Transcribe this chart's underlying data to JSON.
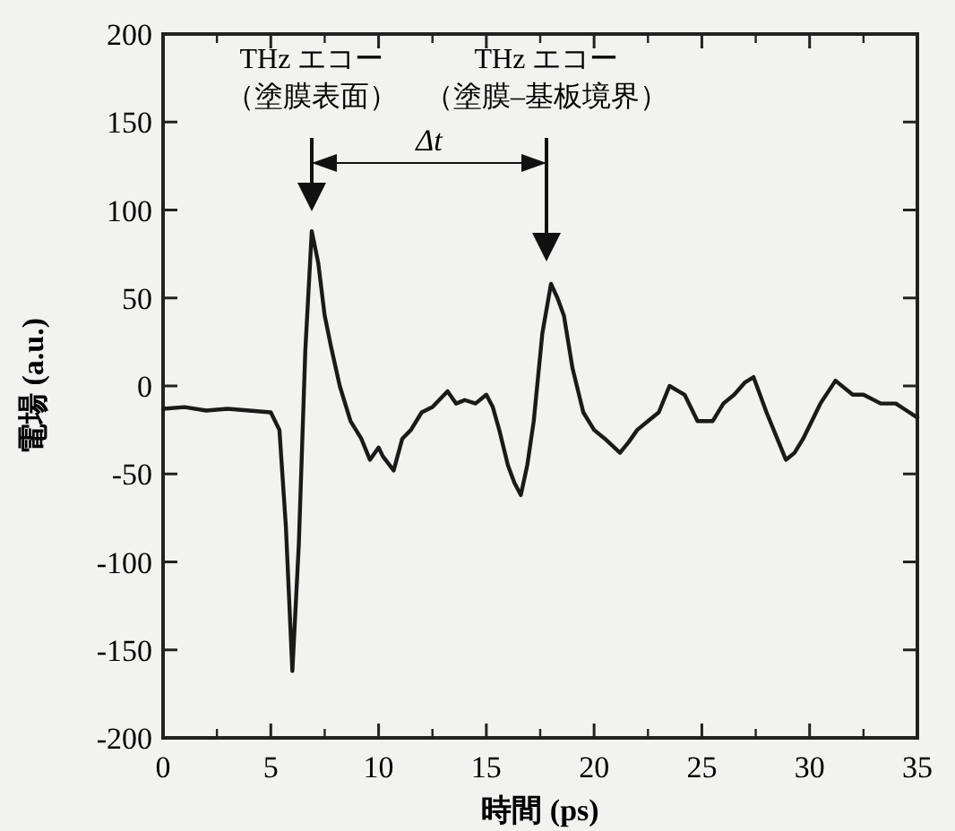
{
  "chart_data": {
    "type": "line",
    "xlabel": "時間 (ps)",
    "ylabel": "電場 (a.u.)",
    "xlim": [
      0,
      35
    ],
    "ylim": [
      -200,
      200
    ],
    "xticks": [
      0,
      5,
      10,
      15,
      20,
      25,
      30,
      35
    ],
    "yticks": [
      -200,
      -150,
      -100,
      -50,
      0,
      50,
      100,
      150,
      200
    ],
    "grid": false,
    "marker": "none",
    "line_style": "solid",
    "series": [
      {
        "color": "#1a1a1a",
        "x": [
          0,
          1,
          2,
          3,
          4,
          5,
          5.4,
          5.7,
          6.0,
          6.3,
          6.6,
          6.9,
          7.2,
          7.5,
          7.8,
          8.2,
          8.7,
          9.2,
          9.6,
          10,
          10.2,
          10.7,
          11.1,
          11.5,
          12,
          12.5,
          13.2,
          13.6,
          14,
          14.5,
          15,
          15.3,
          15.6,
          16.0,
          16.3,
          16.6,
          16.9,
          17.2,
          17.6,
          18.0,
          18.3,
          18.6,
          19,
          19.5,
          20,
          20.5,
          21.2,
          21.6,
          22,
          22.5,
          23,
          23.5,
          24.2,
          24.8,
          25.5,
          26,
          26.5,
          27,
          27.4,
          28,
          28.5,
          28.9,
          29.3,
          29.7,
          30.5,
          31.2,
          32,
          32.5,
          33.3,
          34,
          34.5,
          35
        ],
        "values": [
          -13,
          -12,
          -14,
          -13,
          -14,
          -15,
          -25,
          -80,
          -162,
          -90,
          20,
          88,
          70,
          40,
          22,
          0,
          -20,
          -30,
          -42,
          -35,
          -40,
          -48,
          -30,
          -25,
          -15,
          -12,
          -3,
          -10,
          -8,
          -10,
          -5,
          -12,
          -25,
          -45,
          -55,
          -62,
          -45,
          -20,
          30,
          58,
          50,
          40,
          10,
          -15,
          -25,
          -30,
          -38,
          -32,
          -25,
          -20,
          -15,
          0,
          -5,
          -20,
          -20,
          -10,
          -5,
          2,
          5,
          -15,
          -30,
          -42,
          -38,
          -30,
          -10,
          3,
          -5,
          -5,
          -10,
          -10,
          -14,
          -18
        ]
      }
    ],
    "annotations": [
      "THz エコー",
      "（塗膜表面）",
      "THz エコー",
      "（塗膜–基板境界）",
      "Δt"
    ]
  }
}
